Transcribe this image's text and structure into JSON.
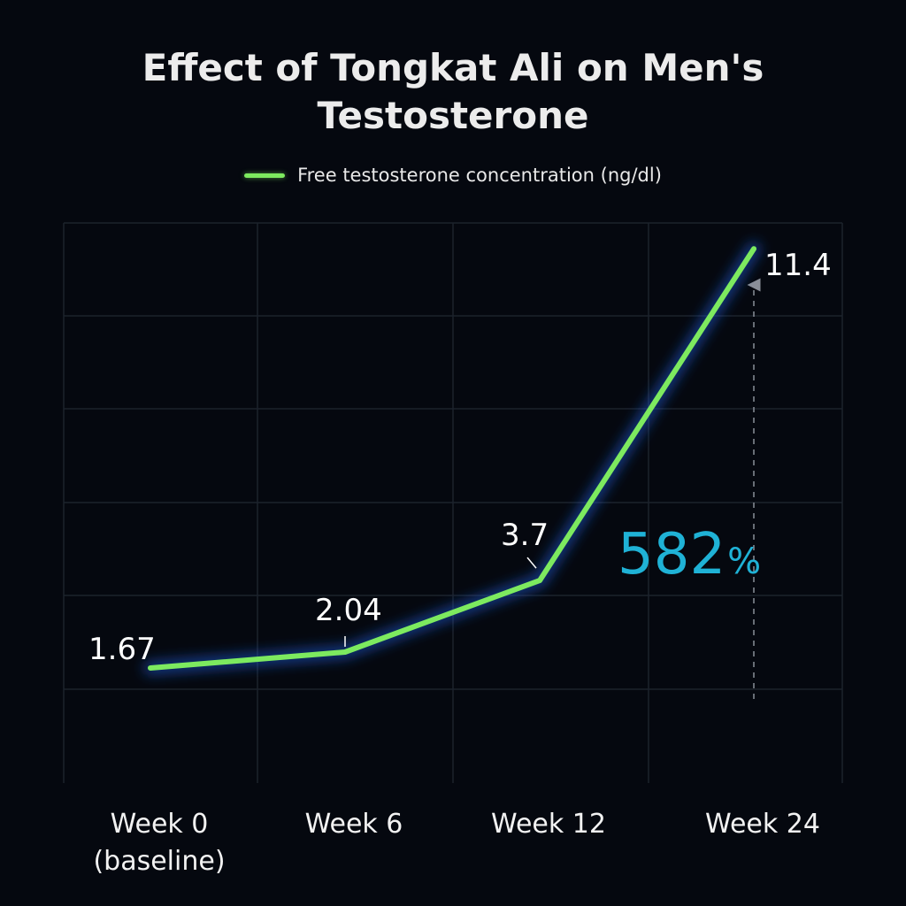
{
  "chart_data": {
    "type": "line",
    "title": "Effect of Tongkat Ali on Men's Testosterone",
    "title_lines": [
      "Effect of Tongkat Ali on Men's",
      "Testosterone"
    ],
    "categories": [
      "Week 0\n(baseline)",
      "Week 6",
      "Week 12",
      "Week 24"
    ],
    "series": [
      {
        "name": "Free testosterone concentration (ng/dl)",
        "values": [
          1.67,
          2.04,
          3.7,
          11.4
        ],
        "color": "#7dea5f"
      }
    ],
    "data_labels": [
      "1.67",
      "2.04",
      "3.7",
      "11.4"
    ],
    "annotation": {
      "text": "582",
      "suffix": "%",
      "color": "#1fb2d6"
    },
    "ylim": [
      -1,
      12
    ],
    "grid": true,
    "legend_position": "top-center",
    "xlabel": "",
    "ylabel": ""
  }
}
